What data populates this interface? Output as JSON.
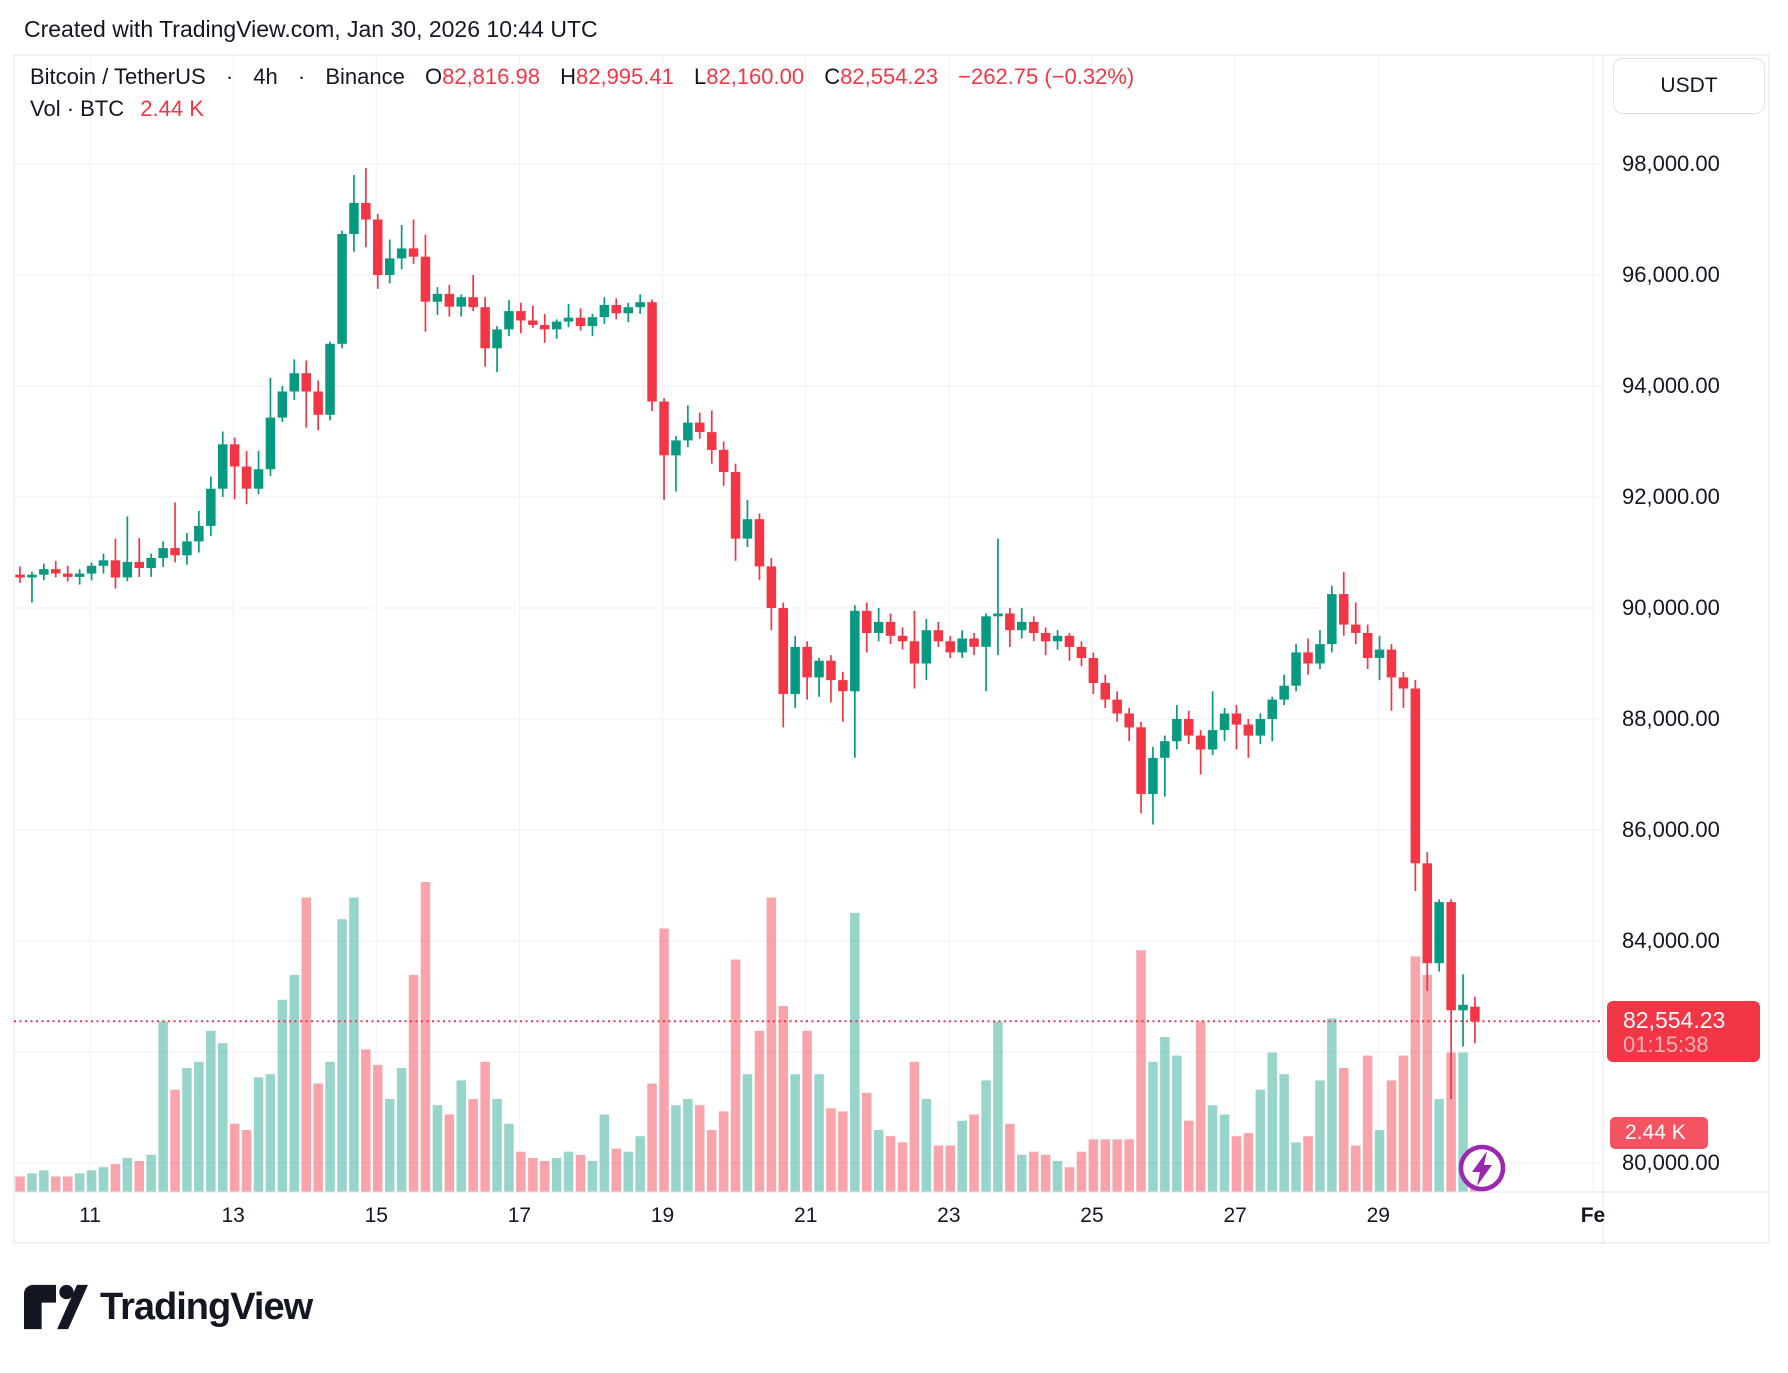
{
  "attribution": "Created with TradingView.com, Jan 30, 2026 10:44 UTC",
  "header": {
    "symbol": "Bitcoin / TetherUS",
    "sep1": "·",
    "interval": "4h",
    "sep2": "·",
    "exchange": "Binance",
    "o_label": "O",
    "o_value": "82,816.98",
    "h_label": "H",
    "h_value": "82,995.41",
    "l_label": "L",
    "l_value": "82,160.00",
    "c_label": "C",
    "c_value": "82,554.23",
    "change": "−262.75 (−0.32%)",
    "vol_label": "Vol · BTC",
    "vol_value": "2.44 K"
  },
  "axis": {
    "currency_button": "USDT",
    "y_labels": [
      {
        "text": "98,000.00",
        "price": 98000
      },
      {
        "text": "96,000.00",
        "price": 96000
      },
      {
        "text": "94,000.00",
        "price": 94000
      },
      {
        "text": "92,000.00",
        "price": 92000
      },
      {
        "text": "90,000.00",
        "price": 90000
      },
      {
        "text": "88,000.00",
        "price": 88000
      },
      {
        "text": "86,000.00",
        "price": 86000
      },
      {
        "text": "84,000.00",
        "price": 84000
      },
      {
        "text": "80,000.00",
        "price": 80000
      }
    ],
    "x_labels": [
      {
        "text": "11",
        "day": 11
      },
      {
        "text": "13",
        "day": 13
      },
      {
        "text": "15",
        "day": 15
      },
      {
        "text": "17",
        "day": 17
      },
      {
        "text": "19",
        "day": 19
      },
      {
        "text": "21",
        "day": 21
      },
      {
        "text": "23",
        "day": 23
      },
      {
        "text": "25",
        "day": 25
      },
      {
        "text": "27",
        "day": 27
      },
      {
        "text": "29",
        "day": 29
      },
      {
        "text": "Fe",
        "day": 32,
        "bold": true
      }
    ]
  },
  "badges": {
    "price": {
      "line1": "82,554.23",
      "line2": "01:15:38"
    },
    "volume": {
      "text": "2.44 K"
    }
  },
  "logo": {
    "text": "TradingView"
  },
  "colors": {
    "up": "#089981",
    "down": "#f23645",
    "vol_up": "rgba(8,153,129,0.42)",
    "vol_down": "rgba(242,54,69,0.45)",
    "grid": "#f0f2f6",
    "frame": "#e0e3eb",
    "accent_red": "#f23645",
    "marker_purple": "#9c27b0",
    "text": "#131722"
  },
  "chart_data": {
    "type": "candlestick_with_volume",
    "title": "Bitcoin / TetherUS",
    "interval": "4h",
    "exchange": "Binance",
    "quote_currency": "USDT",
    "volume_unit": "BTC",
    "current_candle": {
      "open": 82816.98,
      "high": 82995.41,
      "low": 82160.0,
      "close": 82554.23,
      "change": -262.75,
      "change_pct": -0.32,
      "volume": "2.44 K",
      "countdown": "01:15:38"
    },
    "price_line": 82554.23,
    "y_ticks": [
      80000,
      82000,
      84000,
      86000,
      88000,
      90000,
      92000,
      94000,
      96000,
      98000
    ],
    "x_ticks_days_jan": [
      11,
      13,
      15,
      17,
      19,
      21,
      23,
      25,
      27,
      29
    ],
    "x_end_label": "Fe",
    "start_date": "Jan 10",
    "candles_note": "each candle = [open, high, low, close, relative_volume] at 4h step from Jan 10 00:00",
    "candles": [
      [
        90600,
        90750,
        90450,
        90550,
        0.05
      ],
      [
        90550,
        90650,
        90100,
        90600,
        0.06
      ],
      [
        90600,
        90800,
        90500,
        90700,
        0.07
      ],
      [
        90700,
        90850,
        90550,
        90620,
        0.05
      ],
      [
        90620,
        90760,
        90480,
        90560,
        0.05
      ],
      [
        90560,
        90700,
        90420,
        90620,
        0.06
      ],
      [
        90620,
        90820,
        90500,
        90760,
        0.07
      ],
      [
        90760,
        90980,
        90620,
        90860,
        0.08
      ],
      [
        90860,
        91250,
        90350,
        90550,
        0.09
      ],
      [
        90550,
        91650,
        90480,
        90830,
        0.11
      ],
      [
        90830,
        91260,
        90560,
        90720,
        0.1
      ],
      [
        90720,
        90980,
        90560,
        90900,
        0.12
      ],
      [
        90900,
        91200,
        90740,
        91080,
        0.55
      ],
      [
        91080,
        91900,
        90820,
        90950,
        0.33
      ],
      [
        90950,
        91350,
        90780,
        91200,
        0.4
      ],
      [
        91200,
        91750,
        91000,
        91480,
        0.42
      ],
      [
        91480,
        92370,
        91300,
        92150,
        0.52
      ],
      [
        92150,
        93180,
        92000,
        92950,
        0.48
      ],
      [
        92950,
        93070,
        91960,
        92550,
        0.22
      ],
      [
        92550,
        92830,
        91870,
        92150,
        0.2
      ],
      [
        92150,
        92830,
        92050,
        92500,
        0.37
      ],
      [
        92500,
        94150,
        92380,
        93430,
        0.38
      ],
      [
        93430,
        94000,
        93350,
        93900,
        0.62
      ],
      [
        93900,
        94480,
        93750,
        94230,
        0.7
      ],
      [
        94230,
        94460,
        93250,
        93900,
        0.95
      ],
      [
        93900,
        94100,
        93200,
        93480,
        0.35
      ],
      [
        93480,
        94800,
        93380,
        94760,
        0.42
      ],
      [
        94760,
        96800,
        94680,
        96740,
        0.88
      ],
      [
        96740,
        97800,
        96420,
        97300,
        0.95
      ],
      [
        97300,
        97930,
        96500,
        97000,
        0.46
      ],
      [
        97000,
        97100,
        95750,
        96000,
        0.41
      ],
      [
        96000,
        96640,
        95850,
        96300,
        0.3
      ],
      [
        96300,
        96900,
        96100,
        96480,
        0.4
      ],
      [
        96480,
        97000,
        96200,
        96330,
        0.7
      ],
      [
        96330,
        96730,
        94980,
        95520,
        1.0
      ],
      [
        95520,
        95780,
        95280,
        95660,
        0.28
      ],
      [
        95660,
        95820,
        95250,
        95430,
        0.25
      ],
      [
        95430,
        95650,
        95250,
        95600,
        0.36
      ],
      [
        95600,
        96000,
        95350,
        95420,
        0.3
      ],
      [
        95420,
        95600,
        94350,
        94680,
        0.42
      ],
      [
        94680,
        95080,
        94250,
        95020,
        0.3
      ],
      [
        95020,
        95550,
        94900,
        95350,
        0.22
      ],
      [
        95350,
        95500,
        94950,
        95180,
        0.13
      ],
      [
        95180,
        95450,
        95050,
        95100,
        0.11
      ],
      [
        95100,
        95300,
        94780,
        95020,
        0.1
      ],
      [
        95020,
        95200,
        94850,
        95160,
        0.11
      ],
      [
        95160,
        95480,
        95060,
        95230,
        0.13
      ],
      [
        95230,
        95400,
        95000,
        95080,
        0.12
      ],
      [
        95080,
        95300,
        94900,
        95240,
        0.1
      ],
      [
        95240,
        95600,
        95120,
        95460,
        0.25
      ],
      [
        95460,
        95580,
        95200,
        95310,
        0.14
      ],
      [
        95310,
        95500,
        95150,
        95420,
        0.13
      ],
      [
        95420,
        95650,
        95300,
        95510,
        0.18
      ],
      [
        95510,
        95560,
        93550,
        93720,
        0.35
      ],
      [
        93720,
        93780,
        91950,
        92750,
        0.85
      ],
      [
        92750,
        93100,
        92100,
        93020,
        0.28
      ],
      [
        93020,
        93650,
        92900,
        93340,
        0.3
      ],
      [
        93340,
        93520,
        93050,
        93170,
        0.28
      ],
      [
        93170,
        93560,
        92600,
        92850,
        0.2
      ],
      [
        92850,
        93000,
        92200,
        92450,
        0.26
      ],
      [
        92450,
        92600,
        90850,
        91250,
        0.75
      ],
      [
        91250,
        91950,
        91100,
        91600,
        0.38
      ],
      [
        91600,
        91700,
        90500,
        90750,
        0.52
      ],
      [
        90750,
        90900,
        89600,
        90000,
        0.95
      ],
      [
        90000,
        90100,
        87850,
        88450,
        0.6
      ],
      [
        88450,
        89500,
        88200,
        89300,
        0.38
      ],
      [
        89300,
        89400,
        88350,
        88750,
        0.52
      ],
      [
        88750,
        89100,
        88400,
        89050,
        0.38
      ],
      [
        89050,
        89150,
        88300,
        88700,
        0.27
      ],
      [
        88700,
        88850,
        87950,
        88500,
        0.26
      ],
      [
        88500,
        90050,
        87300,
        89950,
        0.9
      ],
      [
        89950,
        90100,
        89200,
        89550,
        0.32
      ],
      [
        89550,
        90000,
        89400,
        89750,
        0.2
      ],
      [
        89750,
        89900,
        89350,
        89500,
        0.18
      ],
      [
        89500,
        89650,
        89250,
        89400,
        0.16
      ],
      [
        89400,
        89950,
        88550,
        89000,
        0.42
      ],
      [
        89000,
        89800,
        88700,
        89600,
        0.3
      ],
      [
        89600,
        89750,
        89300,
        89400,
        0.15
      ],
      [
        89400,
        89500,
        89100,
        89200,
        0.15
      ],
      [
        89200,
        89600,
        89100,
        89450,
        0.23
      ],
      [
        89450,
        89550,
        89150,
        89300,
        0.25
      ],
      [
        89300,
        89900,
        88500,
        89850,
        0.36
      ],
      [
        89850,
        91250,
        89150,
        89900,
        0.55
      ],
      [
        89900,
        90000,
        89300,
        89600,
        0.22
      ],
      [
        89600,
        90000,
        89450,
        89750,
        0.12
      ],
      [
        89750,
        89850,
        89400,
        89550,
        0.13
      ],
      [
        89550,
        89650,
        89150,
        89400,
        0.12
      ],
      [
        89400,
        89600,
        89250,
        89500,
        0.1
      ],
      [
        89500,
        89550,
        89050,
        89300,
        0.08
      ],
      [
        89300,
        89400,
        88950,
        89100,
        0.13
      ],
      [
        89100,
        89200,
        88450,
        88650,
        0.17
      ],
      [
        88650,
        88800,
        88200,
        88350,
        0.17
      ],
      [
        88350,
        88500,
        87950,
        88100,
        0.17
      ],
      [
        88100,
        88200,
        87600,
        87850,
        0.17
      ],
      [
        87850,
        87950,
        86300,
        86650,
        0.78
      ],
      [
        86650,
        87500,
        86100,
        87300,
        0.42
      ],
      [
        87300,
        87700,
        86600,
        87600,
        0.5
      ],
      [
        87600,
        88250,
        87450,
        88000,
        0.44
      ],
      [
        88000,
        88150,
        87550,
        87700,
        0.23
      ],
      [
        87700,
        87800,
        87000,
        87450,
        0.55
      ],
      [
        87450,
        88500,
        87350,
        87800,
        0.28
      ],
      [
        87800,
        88200,
        87600,
        88100,
        0.25
      ],
      [
        88100,
        88250,
        87450,
        87900,
        0.18
      ],
      [
        87900,
        88000,
        87300,
        87700,
        0.19
      ],
      [
        87700,
        88100,
        87550,
        88000,
        0.33
      ],
      [
        88000,
        88400,
        87600,
        88350,
        0.45
      ],
      [
        88350,
        88800,
        88250,
        88600,
        0.38
      ],
      [
        88600,
        89350,
        88500,
        89200,
        0.16
      ],
      [
        89200,
        89450,
        88800,
        89000,
        0.18
      ],
      [
        89000,
        89600,
        88900,
        89350,
        0.36
      ],
      [
        89350,
        90400,
        89200,
        90250,
        0.56
      ],
      [
        90250,
        90650,
        89500,
        89700,
        0.4
      ],
      [
        89700,
        90100,
        89350,
        89550,
        0.15
      ],
      [
        89550,
        89700,
        88900,
        89100,
        0.44
      ],
      [
        89100,
        89500,
        88700,
        89250,
        0.2
      ],
      [
        89250,
        89350,
        88150,
        88750,
        0.36
      ],
      [
        88750,
        88850,
        88200,
        88550,
        0.44
      ],
      [
        88550,
        88700,
        84900,
        85400,
        0.76
      ],
      [
        85400,
        85600,
        83100,
        83600,
        0.7
      ],
      [
        83600,
        84750,
        83450,
        84700,
        0.3
      ],
      [
        84700,
        84750,
        81150,
        82750,
        0.45
      ],
      [
        82750,
        83400,
        82100,
        82850,
        0.45
      ],
      [
        82816.98,
        82995.41,
        82160,
        82554.23,
        0.03
      ]
    ]
  }
}
